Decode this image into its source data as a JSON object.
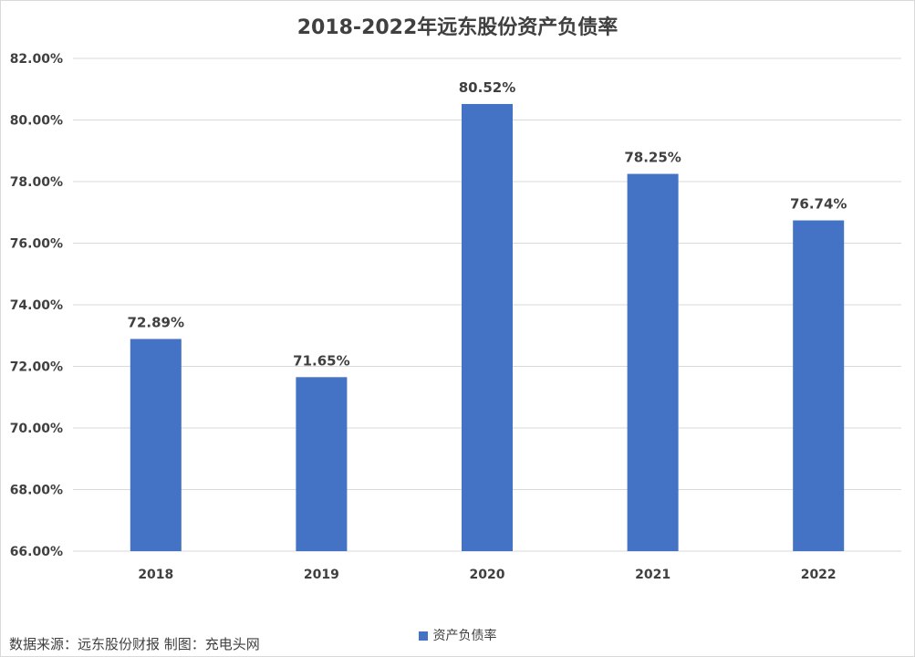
{
  "chart_data": {
    "type": "bar",
    "title": "2018-2022年远东股份资产负债率",
    "categories": [
      "2018",
      "2019",
      "2020",
      "2021",
      "2022"
    ],
    "series": [
      {
        "name": "资产负债率",
        "values": [
          72.89,
          71.65,
          80.52,
          78.25,
          76.74
        ],
        "data_labels": [
          "72.89%",
          "71.65%",
          "80.52%",
          "78.25%",
          "76.74%"
        ],
        "color": "#4472C4"
      }
    ],
    "ylim": [
      66,
      82
    ],
    "y_ticks": [
      66,
      68,
      70,
      72,
      74,
      76,
      78,
      80,
      82
    ],
    "y_tick_labels": [
      "66.00%",
      "68.00%",
      "70.00%",
      "72.00%",
      "74.00%",
      "76.00%",
      "78.00%",
      "80.00%",
      "82.00%"
    ],
    "grid": true,
    "legend_position": "bottom"
  },
  "source_note": "数据来源：远东股份财报  制图：充电头网",
  "colors": {
    "bar": "#4472C4",
    "grid": "#d9d9d9",
    "text": "#404040"
  }
}
